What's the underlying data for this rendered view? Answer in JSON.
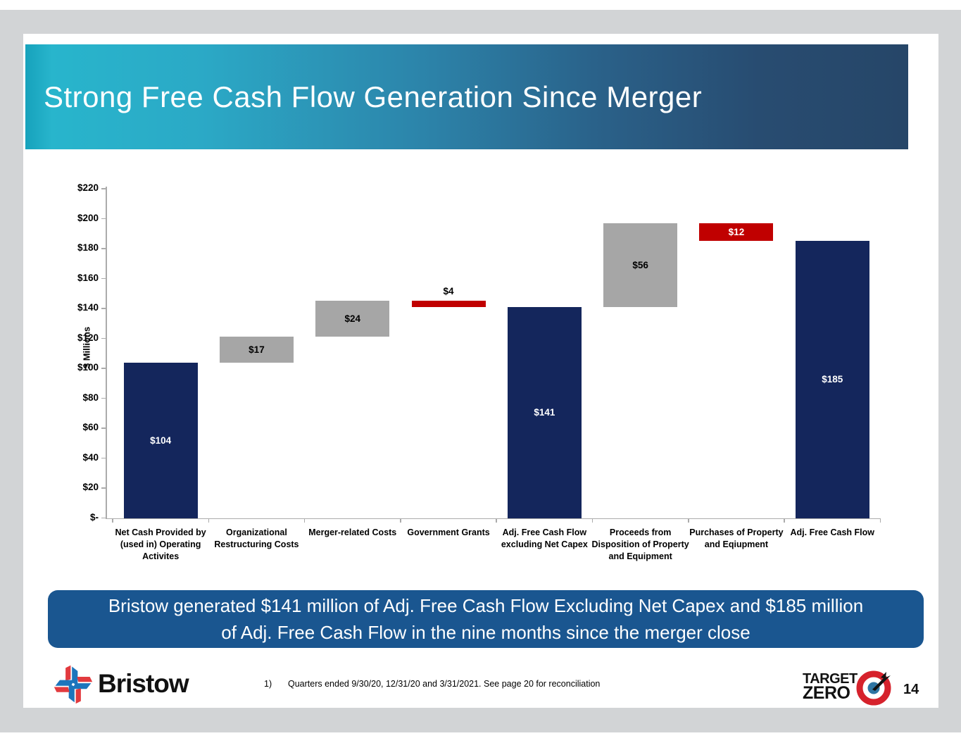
{
  "title": {
    "text": "Strong Free Cash Flow Generation Since Merger",
    "gradient_start": "#28B5CC",
    "gradient_end": "#264668"
  },
  "chart_data": {
    "type": "bar",
    "subtype": "waterfall",
    "title": "",
    "xlabel": "",
    "ylabel": "$ Millions",
    "ylim": [
      0,
      220
    ],
    "ytick_step": 20,
    "ytick_labels": [
      "$-",
      "$20",
      "$40",
      "$60",
      "$80",
      "$100",
      "$120",
      "$140",
      "$160",
      "$180",
      "$200",
      "$220"
    ],
    "grid": false,
    "legend": false,
    "axis_color": "#ababab",
    "categories": [
      "Net Cash Provided by (used in) Operating Activites",
      "Organizational Restructuring Costs",
      "Merger-related Costs",
      "Government Grants",
      "Adj. Free Cash Flow excluding Net Capex",
      "Proceeds from Disposition of Property and Equipment",
      "Purchases of Property and Eqiupment",
      "Adj. Free Cash Flow"
    ],
    "bars": [
      {
        "category": "Net Cash Provided by (used in) Operating Activites",
        "base": 0,
        "top": 104,
        "value": 104,
        "label": "$104",
        "color": "#14265C",
        "label_color": "#FFFFFF",
        "label_pos": "inside"
      },
      {
        "category": "Organizational Restructuring Costs",
        "base": 104,
        "top": 121,
        "value": 17,
        "label": "$17",
        "color": "#A6A6A6",
        "label_color": "#000000",
        "label_pos": "inside"
      },
      {
        "category": "Merger-related Costs",
        "base": 121,
        "top": 145,
        "value": 24,
        "label": "$24",
        "color": "#A6A6A6",
        "label_color": "#000000",
        "label_pos": "inside"
      },
      {
        "category": "Government Grants",
        "base": 141,
        "top": 145,
        "value": -4,
        "label": "$4",
        "color": "#C00000",
        "label_color": "#000000",
        "label_pos": "above"
      },
      {
        "category": "Adj. Free Cash Flow excluding Net Capex",
        "base": 0,
        "top": 141,
        "value": 141,
        "label": "$141",
        "color": "#14265C",
        "label_color": "#FFFFFF",
        "label_pos": "inside"
      },
      {
        "category": "Proceeds from Disposition of Property and Equipment",
        "base": 141,
        "top": 197,
        "value": 56,
        "label": "$56",
        "color": "#A6A6A6",
        "label_color": "#000000",
        "label_pos": "inside"
      },
      {
        "category": "Purchases of Property and Eqiupment",
        "base": 185,
        "top": 197,
        "value": -12,
        "label": "$12",
        "color": "#C00000",
        "label_color": "#FFFFFF",
        "label_pos": "inside"
      },
      {
        "category": "Adj. Free Cash Flow",
        "base": 0,
        "top": 185,
        "value": 185,
        "label": "$185",
        "color": "#14265C",
        "label_color": "#FFFFFF",
        "label_pos": "inside"
      }
    ]
  },
  "banner": {
    "text": "Bristow generated $141 million of Adj. Free Cash Flow Excluding Net Capex and $185 million of Adj. Free Cash Flow in the nine months since the merger close",
    "bg": "#1A5690"
  },
  "footer": {
    "brand_name": "Bristow",
    "footnote_marker": "1)",
    "footnote_text": "Quarters ended 9/30/20, 12/31/20 and 3/31/2021. See page 20 for reconciliation",
    "target_zero_top": "TARGET",
    "target_zero_bottom": "ZERO",
    "page_number": "14"
  }
}
